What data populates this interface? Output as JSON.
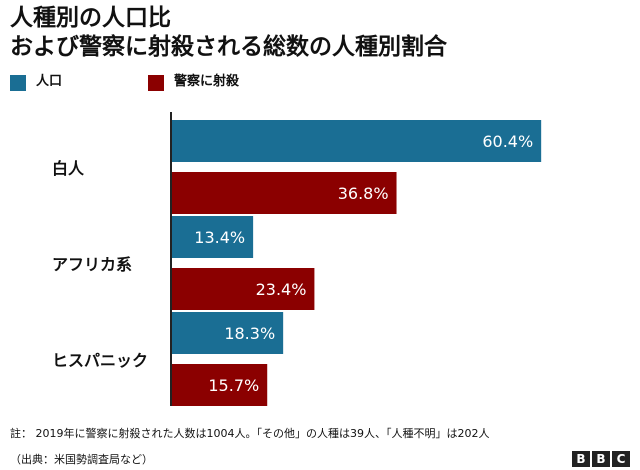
{
  "title_line1": "人種別の人口比",
  "title_line2": "および警察に射殺される総数の人種別割合",
  "chart_data": {
    "type": "bar",
    "orientation": "horizontal",
    "categories": [
      "白人",
      "アフリカ系",
      "ヒスパニック"
    ],
    "series": [
      {
        "name": "人口",
        "color": "#1a6e94",
        "values": [
          60.4,
          13.4,
          18.3
        ],
        "labels": [
          "60.4%",
          "13.4%",
          "18.3%"
        ]
      },
      {
        "name": "警察に射殺",
        "color": "#8b0000",
        "values": [
          36.8,
          23.4,
          15.7
        ],
        "labels": [
          "36.8%",
          "23.4%",
          "15.7%"
        ]
      }
    ],
    "xlim": [
      0,
      70
    ],
    "grid": false,
    "legend_position": "top-left"
  },
  "note": "註： 2019年に警察に射殺された人数は1004人。「その他」の人種は39人、「人種不明」は202人",
  "source": "（出典：米国勢調査局など）",
  "logo": {
    "text": "BBC",
    "letters": [
      "B",
      "B",
      "C"
    ]
  }
}
